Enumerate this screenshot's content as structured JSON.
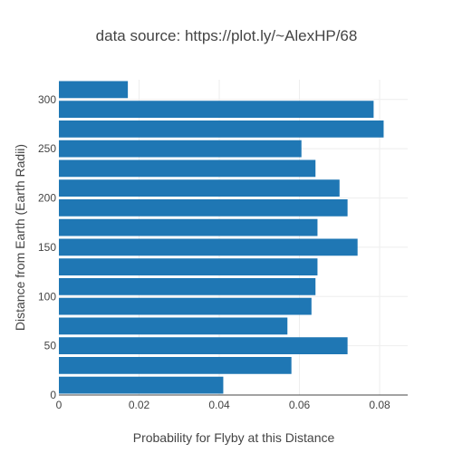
{
  "chart_data": {
    "type": "bar",
    "orientation": "horizontal",
    "title": "data source: https://plot.ly/~AlexHP/68",
    "xlabel": "Probability for Flyby at this Distance",
    "ylabel": "Distance from Earth (Earth Radii)",
    "xlim": [
      0,
      0.087
    ],
    "ylim": [
      0,
      320
    ],
    "x_ticks": [
      0,
      0.02,
      0.04,
      0.06,
      0.08
    ],
    "x_tick_labels": [
      "0",
      "0.02",
      "0.04",
      "0.06",
      "0.08"
    ],
    "y_ticks": [
      0,
      50,
      100,
      150,
      200,
      250,
      300
    ],
    "y_tick_labels": [
      "0",
      "50",
      "100",
      "150",
      "200",
      "250",
      "300"
    ],
    "bin_width": 20,
    "bar_color": "#1f77b4",
    "grid": "vertical and horizontal light gridlines",
    "bars": [
      {
        "y": 10,
        "value": 0.041
      },
      {
        "y": 30,
        "value": 0.058
      },
      {
        "y": 50,
        "value": 0.072
      },
      {
        "y": 70,
        "value": 0.057
      },
      {
        "y": 90,
        "value": 0.063
      },
      {
        "y": 110,
        "value": 0.064
      },
      {
        "y": 130,
        "value": 0.0645
      },
      {
        "y": 150,
        "value": 0.0745
      },
      {
        "y": 170,
        "value": 0.0645
      },
      {
        "y": 190,
        "value": 0.072
      },
      {
        "y": 210,
        "value": 0.07
      },
      {
        "y": 230,
        "value": 0.064
      },
      {
        "y": 250,
        "value": 0.0605
      },
      {
        "y": 270,
        "value": 0.081
      },
      {
        "y": 290,
        "value": 0.0785
      },
      {
        "y": 310,
        "value": 0.0172
      }
    ]
  }
}
